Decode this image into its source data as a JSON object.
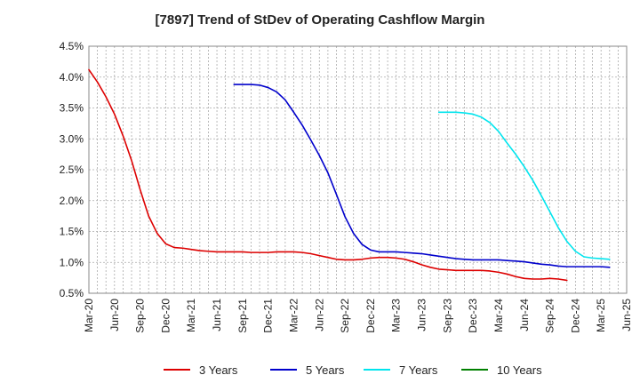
{
  "chart_data": {
    "type": "line",
    "title": "[7897]  Trend of StDev of Operating Cashflow Margin",
    "xlabel": "",
    "ylabel": "",
    "ylim": [
      0.5,
      4.5
    ],
    "y_ticks": [
      "0.5%",
      "1.0%",
      "1.5%",
      "2.0%",
      "2.5%",
      "3.0%",
      "3.5%",
      "4.0%",
      "4.5%"
    ],
    "x_ticks": [
      "Mar-20",
      "Jun-20",
      "Sep-20",
      "Dec-20",
      "Mar-21",
      "Jun-21",
      "Sep-21",
      "Dec-21",
      "Mar-22",
      "Jun-22",
      "Sep-22",
      "Dec-22",
      "Mar-23",
      "Jun-23",
      "Sep-23",
      "Dec-23",
      "Mar-24",
      "Jun-24",
      "Sep-24",
      "Dec-24",
      "Mar-25",
      "Jun-25"
    ],
    "grid": true,
    "legend_position": "bottom",
    "series": [
      {
        "name": "3 Years",
        "color": "#dd0000",
        "start": "Mar-20",
        "values": [
          4.12,
          3.92,
          3.68,
          3.4,
          3.05,
          2.65,
          2.18,
          1.75,
          1.47,
          1.3,
          1.24,
          1.23,
          1.21,
          1.19,
          1.18,
          1.17,
          1.17,
          1.17,
          1.17,
          1.16,
          1.16,
          1.16,
          1.17,
          1.17,
          1.17,
          1.16,
          1.14,
          1.11,
          1.08,
          1.05,
          1.04,
          1.04,
          1.05,
          1.07,
          1.08,
          1.08,
          1.07,
          1.05,
          1.01,
          0.96,
          0.92,
          0.89,
          0.88,
          0.87,
          0.87,
          0.87,
          0.87,
          0.86,
          0.84,
          0.81,
          0.77,
          0.74,
          0.73,
          0.73,
          0.74,
          0.73,
          0.71
        ]
      },
      {
        "name": "5 Years",
        "color": "#0000cc",
        "start": "Aug-21",
        "values": [
          3.88,
          3.88,
          3.88,
          3.87,
          3.83,
          3.76,
          3.63,
          3.43,
          3.22,
          2.98,
          2.73,
          2.45,
          2.1,
          1.74,
          1.47,
          1.29,
          1.2,
          1.17,
          1.17,
          1.17,
          1.16,
          1.15,
          1.14,
          1.12,
          1.1,
          1.08,
          1.06,
          1.05,
          1.04,
          1.04,
          1.04,
          1.04,
          1.03,
          1.02,
          1.01,
          0.99,
          0.97,
          0.96,
          0.94,
          0.93,
          0.93,
          0.93,
          0.93,
          0.93,
          0.92
        ]
      },
      {
        "name": "7 Years",
        "color": "#00e5ee",
        "start": "Aug-23",
        "values": [
          3.43,
          3.43,
          3.43,
          3.42,
          3.4,
          3.35,
          3.26,
          3.12,
          2.93,
          2.75,
          2.55,
          2.33,
          2.08,
          1.82,
          1.56,
          1.34,
          1.18,
          1.09,
          1.07,
          1.06,
          1.05
        ]
      },
      {
        "name": "10 Years",
        "color": "#008000",
        "start": "",
        "values": []
      }
    ]
  }
}
